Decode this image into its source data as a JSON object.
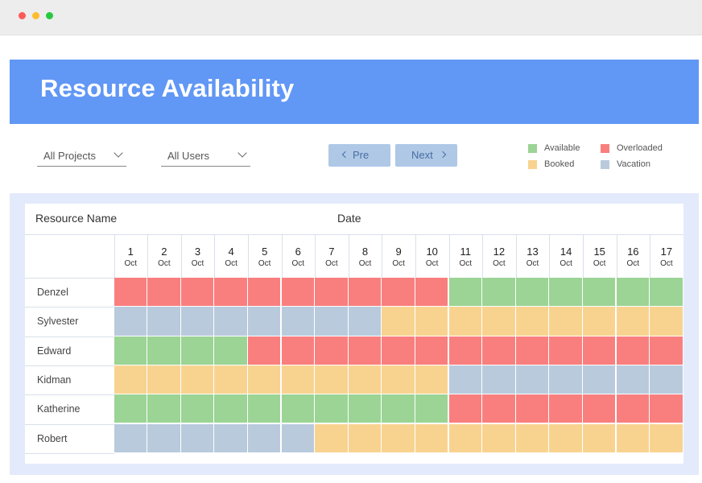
{
  "window": {
    "controls": [
      "close",
      "minimize",
      "maximize"
    ]
  },
  "banner": {
    "title": "Resource Availability"
  },
  "filters": {
    "projects": {
      "label": "All Projects"
    },
    "users": {
      "label": "All Users"
    }
  },
  "pager": {
    "prev_label": "Pre",
    "next_label": "Next"
  },
  "legend": {
    "available": {
      "label": "Available",
      "color": "#9bd495"
    },
    "overloaded": {
      "label": "Overloaded",
      "color": "#f97f7f"
    },
    "booked": {
      "label": "Booked",
      "color": "#f8d390"
    },
    "vacation": {
      "label": "Vacation",
      "color": "#b9cadd"
    }
  },
  "grid": {
    "resource_header": "Resource Name",
    "date_header": "Date",
    "days": [
      {
        "num": "1",
        "month": "Oct"
      },
      {
        "num": "2",
        "month": "Oct"
      },
      {
        "num": "3",
        "month": "Oct"
      },
      {
        "num": "4",
        "month": "Oct"
      },
      {
        "num": "5",
        "month": "Oct"
      },
      {
        "num": "6",
        "month": "Oct"
      },
      {
        "num": "7",
        "month": "Oct"
      },
      {
        "num": "8",
        "month": "Oct"
      },
      {
        "num": "9",
        "month": "Oct"
      },
      {
        "num": "10",
        "month": "Oct"
      },
      {
        "num": "11",
        "month": "Oct"
      },
      {
        "num": "12",
        "month": "Oct"
      },
      {
        "num": "13",
        "month": "Oct"
      },
      {
        "num": "14",
        "month": "Oct"
      },
      {
        "num": "15",
        "month": "Oct"
      },
      {
        "num": "16",
        "month": "Oct"
      },
      {
        "num": "17",
        "month": "Oct"
      }
    ],
    "rows": [
      {
        "name": "Denzel",
        "status": [
          "overloaded",
          "overloaded",
          "overloaded",
          "overloaded",
          "overloaded",
          "overloaded",
          "overloaded",
          "overloaded",
          "overloaded",
          "overloaded",
          "available",
          "available",
          "available",
          "available",
          "available",
          "available",
          "available"
        ]
      },
      {
        "name": "Sylvester",
        "status": [
          "vacation",
          "vacation",
          "vacation",
          "vacation",
          "vacation",
          "vacation",
          "vacation",
          "vacation",
          "booked",
          "booked",
          "booked",
          "booked",
          "booked",
          "booked",
          "booked",
          "booked",
          "booked"
        ]
      },
      {
        "name": "Edward",
        "status": [
          "available",
          "available",
          "available",
          "available",
          "overloaded",
          "overloaded",
          "overloaded",
          "overloaded",
          "overloaded",
          "overloaded",
          "overloaded",
          "overloaded",
          "overloaded",
          "overloaded",
          "overloaded",
          "overloaded",
          "overloaded"
        ]
      },
      {
        "name": "Kidman",
        "status": [
          "booked",
          "booked",
          "booked",
          "booked",
          "booked",
          "booked",
          "booked",
          "booked",
          "booked",
          "booked",
          "vacation",
          "vacation",
          "vacation",
          "vacation",
          "vacation",
          "vacation",
          "vacation"
        ]
      },
      {
        "name": "Katherine",
        "status": [
          "available",
          "available",
          "available",
          "available",
          "available",
          "available",
          "available",
          "available",
          "available",
          "available",
          "overloaded",
          "overloaded",
          "overloaded",
          "overloaded",
          "overloaded",
          "overloaded",
          "overloaded"
        ]
      },
      {
        "name": "Robert",
        "status": [
          "vacation",
          "vacation",
          "vacation",
          "vacation",
          "vacation",
          "vacation",
          "booked",
          "booked",
          "booked",
          "booked",
          "booked",
          "booked",
          "booked",
          "booked",
          "booked",
          "booked",
          "booked"
        ]
      }
    ]
  }
}
